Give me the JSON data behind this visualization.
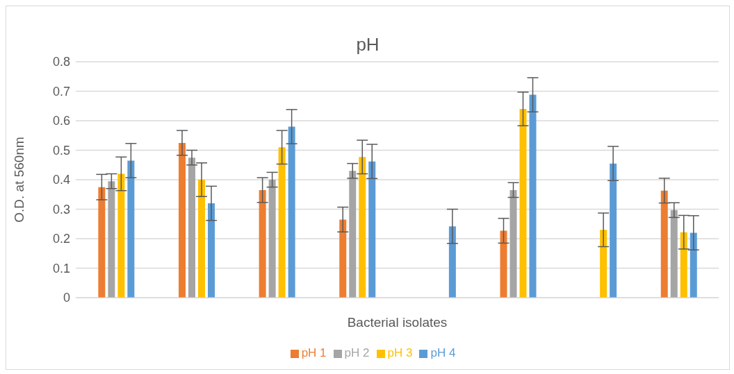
{
  "chart_data": {
    "type": "bar",
    "title": "pH",
    "xlabel": "Bacterial isolates",
    "ylabel": "O.D. at 560nm",
    "categories": [
      null,
      null,
      null,
      null,
      null,
      null,
      null,
      null
    ],
    "series": [
      {
        "name": "pH 1",
        "color": "#ed7d31",
        "values": [
          0.375,
          0.525,
          0.365,
          0.265,
          null,
          0.227,
          null,
          0.363
        ],
        "errors": [
          0.043,
          0.042,
          0.042,
          0.042,
          null,
          0.042,
          null,
          0.042
        ]
      },
      {
        "name": "pH 2",
        "color": "#a5a5a5",
        "values": [
          0.395,
          0.475,
          0.4,
          0.43,
          null,
          0.365,
          null,
          0.297
        ],
        "errors": [
          0.025,
          0.025,
          0.025,
          0.025,
          null,
          0.025,
          null,
          0.025
        ]
      },
      {
        "name": "pH 3",
        "color": "#ffc000",
        "values": [
          0.42,
          0.4,
          0.51,
          0.477,
          null,
          0.64,
          0.23,
          0.222
        ],
        "errors": [
          0.057,
          0.057,
          0.057,
          0.057,
          null,
          0.057,
          0.057,
          0.057
        ]
      },
      {
        "name": "pH 4",
        "color": "#5b9bd5",
        "values": [
          0.465,
          0.32,
          0.58,
          0.462,
          0.242,
          0.688,
          0.455,
          0.22
        ],
        "errors": [
          0.058,
          0.058,
          0.058,
          0.058,
          0.058,
          0.058,
          0.058,
          0.058
        ]
      }
    ],
    "ylim": [
      0,
      0.8
    ],
    "yticks": [
      0,
      0.1,
      0.2,
      0.3,
      0.4,
      0.5,
      0.6,
      0.7,
      0.8
    ],
    "grid": "y",
    "legend": "bottom"
  }
}
